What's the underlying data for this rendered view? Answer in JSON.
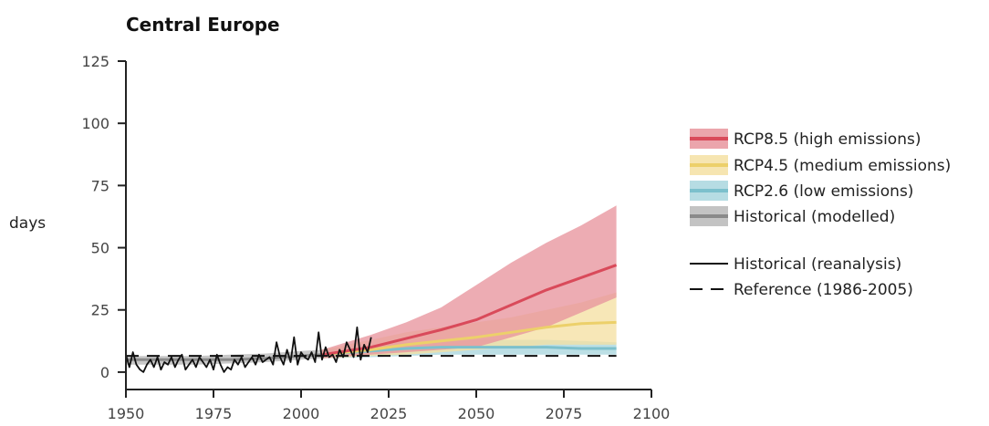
{
  "chart_data": {
    "type": "area",
    "title": "Central Europe",
    "ylabel": "days",
    "xlabel": "",
    "xlim": [
      1950,
      2100
    ],
    "ylim": [
      -7,
      125
    ],
    "xticks": [
      1950,
      1975,
      2000,
      2025,
      2050,
      2075,
      2100
    ],
    "yticks": [
      0,
      25,
      50,
      75,
      100,
      125
    ],
    "grid": false,
    "legend_position": "right",
    "legend": [
      {
        "label": "RCP8.5 (high emissions)",
        "kind": "band",
        "band_color": "#e8959e",
        "line_color": "#d94a5a"
      },
      {
        "label": "RCP4.5 (medium emissions)",
        "kind": "band",
        "band_color": "#f5e0a3",
        "line_color": "#ecd06a"
      },
      {
        "label": "RCP2.6 (low emissions)",
        "kind": "band",
        "band_color": "#a9d6de",
        "line_color": "#7cc0cc"
      },
      {
        "label": "Historical (modelled)",
        "kind": "band",
        "band_color": "#b8b8b8",
        "line_color": "#8a8a8a"
      },
      {
        "label": "Historical (reanalysis)",
        "kind": "solid",
        "line_color": "#111111"
      },
      {
        "label": "Reference (1986-2005)",
        "kind": "dashed",
        "line_color": "#111111"
      }
    ],
    "series": [
      {
        "name": "Historical (modelled)",
        "type": "band",
        "x": [
          1950,
          1960,
          1970,
          1980,
          1990,
          2000,
          2006
        ],
        "lower": [
          3,
          3,
          3,
          3.5,
          4,
          5,
          5.5
        ],
        "upper": [
          6.5,
          6.5,
          6.5,
          7,
          7.5,
          8.5,
          9
        ],
        "median": [
          5,
          5,
          5,
          5,
          5.5,
          6.5,
          7
        ],
        "band_color": "#b8b8b8",
        "line_color": "#8a8a8a"
      },
      {
        "name": "RCP2.6 (low emissions)",
        "type": "band",
        "x": [
          2006,
          2020,
          2030,
          2040,
          2050,
          2060,
          2070,
          2080,
          2090
        ],
        "lower": [
          5.5,
          6,
          6.5,
          7,
          7,
          7,
          7,
          7,
          7
        ],
        "upper": [
          9,
          11,
          12,
          12.5,
          13,
          13,
          13,
          12.5,
          12
        ],
        "median": [
          7,
          8.5,
          9.5,
          10,
          10,
          10,
          10,
          9.5,
          9.5
        ],
        "band_color": "#a9d6de",
        "line_color": "#7cc0cc"
      },
      {
        "name": "RCP4.5 (medium emissions)",
        "type": "band",
        "x": [
          2006,
          2020,
          2030,
          2040,
          2050,
          2060,
          2070,
          2080,
          2090
        ],
        "lower": [
          5.5,
          6.5,
          7,
          8,
          9,
          10,
          11,
          11,
          11
        ],
        "upper": [
          9,
          13,
          16,
          18,
          20,
          22,
          25,
          28,
          32
        ],
        "median": [
          7,
          9,
          11,
          12.5,
          14,
          16,
          18,
          19.5,
          20
        ],
        "band_color": "#f5e0a3",
        "line_color": "#ecd06a"
      },
      {
        "name": "RCP8.5 (high emissions)",
        "type": "band",
        "x": [
          2006,
          2020,
          2030,
          2040,
          2050,
          2060,
          2070,
          2080,
          2090
        ],
        "lower": [
          5.5,
          7,
          8,
          9,
          10,
          14,
          18,
          24,
          30
        ],
        "upper": [
          9,
          15,
          20,
          26,
          35,
          44,
          52,
          59,
          67
        ],
        "median": [
          7,
          10,
          13.5,
          17,
          21,
          27,
          33,
          38,
          43
        ],
        "band_color": "#e8959e",
        "line_color": "#d94a5a"
      },
      {
        "name": "Historical (reanalysis)",
        "type": "line",
        "color": "#111111",
        "x": [
          1950,
          1951,
          1952,
          1953,
          1954,
          1955,
          1956,
          1957,
          1958,
          1959,
          1960,
          1961,
          1962,
          1963,
          1964,
          1965,
          1966,
          1967,
          1968,
          1969,
          1970,
          1971,
          1972,
          1973,
          1974,
          1975,
          1976,
          1977,
          1978,
          1979,
          1980,
          1981,
          1982,
          1983,
          1984,
          1985,
          1986,
          1987,
          1988,
          1989,
          1990,
          1991,
          1992,
          1993,
          1994,
          1995,
          1996,
          1997,
          1998,
          1999,
          2000,
          2001,
          2002,
          2003,
          2004,
          2005,
          2006,
          2007,
          2008,
          2009,
          2010,
          2011,
          2012,
          2013,
          2014,
          2015,
          2016,
          2017,
          2018,
          2019,
          2020
        ],
        "values": [
          7,
          2,
          8,
          3,
          1,
          0,
          3,
          5,
          2,
          6,
          1,
          4,
          3,
          6,
          2,
          5,
          7,
          1,
          3,
          5,
          2,
          6,
          4,
          2,
          5,
          1,
          7,
          3,
          0,
          2,
          1,
          5,
          3,
          6,
          2,
          4,
          6,
          3,
          7,
          4,
          5,
          6,
          3,
          12,
          6,
          3,
          9,
          4,
          14,
          3,
          8,
          6,
          5,
          8,
          4,
          16,
          5,
          10,
          6,
          7,
          4,
          9,
          6,
          12,
          9,
          6,
          18,
          5,
          11,
          8,
          14
        ]
      },
      {
        "name": "Reference (1986-2005)",
        "type": "dashed",
        "color": "#111111",
        "x": [
          1950,
          2090
        ],
        "values": [
          6.5,
          6.5
        ]
      }
    ]
  }
}
